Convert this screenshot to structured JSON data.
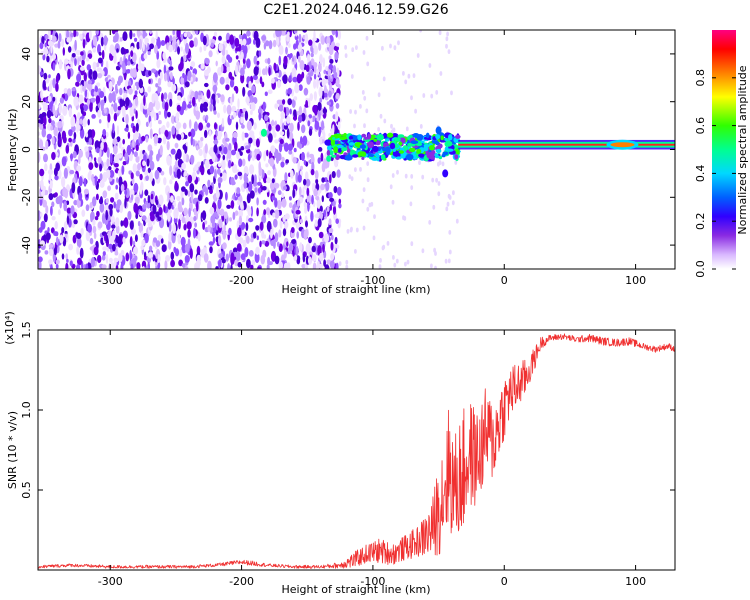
{
  "title": "C2E1.2024.046.12.59.G26",
  "colors": {
    "snr_line": "#f03030",
    "scatter_purple": "#6a00e0",
    "strong_band": "#ff2020",
    "axes": "#000000"
  },
  "chart_data": [
    {
      "type": "heatmap",
      "xlabel": "Height of straight line (km)",
      "ylabel": "Frequency (Hz)",
      "xlim": [
        -355,
        130
      ],
      "ylim": [
        -50,
        50
      ],
      "xticks": [
        -300,
        -200,
        -100,
        0,
        100
      ],
      "xtick_labels": [
        "-300",
        "-200",
        "-100",
        "0",
        "100"
      ],
      "yticks": [
        -40,
        -20,
        0,
        20,
        40
      ],
      "ytick_labels": [
        "-40",
        "-20",
        "0",
        "20",
        "40"
      ],
      "grid": false,
      "colorbar": {
        "label": "Normalized spectral amplitude",
        "range": [
          0,
          1
        ],
        "ticks": [
          0.0,
          0.2,
          0.4,
          0.6,
          0.8
        ],
        "tick_labels": [
          "0.0",
          "0.2",
          "0.4",
          "0.6",
          "0.8"
        ],
        "colormap": "rainbow (white-purple-blue-cyan-green-yellow-red-magenta)"
      },
      "regions": [
        {
          "desc": "diffuse purple noise",
          "x": [
            -355,
            -125
          ],
          "freq": [
            -50,
            50
          ],
          "amplitude": 0.25
        },
        {
          "desc": "sparse faint noise",
          "x": [
            -125,
            -40
          ],
          "freq": [
            -50,
            50
          ],
          "amplitude": 0.05
        },
        {
          "desc": "multi-color band near 0 Hz",
          "x": [
            -135,
            -35
          ],
          "freq": [
            -6,
            6
          ],
          "amplitude": 0.5
        },
        {
          "desc": "narrow red band at ~2 Hz",
          "x": [
            -35,
            130
          ],
          "freq": [
            0,
            4
          ],
          "amplitude": 0.9
        }
      ]
    },
    {
      "type": "line",
      "xlabel": "Height of straight line (km)",
      "ylabel": "SNR (10 * v/v)",
      "y_multiplier": "(x10⁴)",
      "xlim": [
        -355,
        130
      ],
      "ylim": [
        0,
        1.5
      ],
      "xticks": [
        -300,
        -200,
        -100,
        0,
        100
      ],
      "xtick_labels": [
        "-300",
        "-200",
        "-100",
        "0",
        "100"
      ],
      "yticks": [
        0.5,
        1.0,
        1.5
      ],
      "ytick_labels": [
        "0.5",
        "1.0",
        "1.5"
      ],
      "grid": false,
      "series": [
        {
          "x": [
            -355,
            -330,
            -300,
            -270,
            -240,
            -220,
            -200,
            -190,
            -180,
            -160,
            -140,
            -125,
            -115,
            -105,
            -95,
            -85,
            -75,
            -65,
            -55,
            -48,
            -42,
            -38,
            -32,
            -26,
            -20,
            -14,
            -8,
            -2,
            4,
            10,
            16,
            22,
            28,
            35,
            45,
            55,
            65,
            75,
            85,
            95,
            105,
            115,
            125,
            130
          ],
          "y": [
            0.02,
            0.03,
            0.02,
            0.02,
            0.02,
            0.03,
            0.05,
            0.04,
            0.03,
            0.02,
            0.02,
            0.03,
            0.06,
            0.1,
            0.12,
            0.1,
            0.14,
            0.18,
            0.25,
            0.45,
            0.65,
            0.5,
            0.6,
            0.72,
            0.7,
            0.85,
            0.8,
            0.98,
            1.1,
            1.15,
            1.2,
            1.3,
            1.42,
            1.45,
            1.46,
            1.44,
            1.45,
            1.43,
            1.42,
            1.43,
            1.4,
            1.38,
            1.4,
            1.38
          ],
          "amplitude": [
            0.01,
            0.01,
            0.01,
            0.01,
            0.01,
            0.01,
            0.015,
            0.015,
            0.01,
            0.01,
            0.01,
            0.02,
            0.05,
            0.06,
            0.08,
            0.07,
            0.08,
            0.1,
            0.18,
            0.35,
            0.4,
            0.35,
            0.4,
            0.35,
            0.3,
            0.3,
            0.25,
            0.22,
            0.18,
            0.15,
            0.12,
            0.08,
            0.04,
            0.02,
            0.02,
            0.02,
            0.025,
            0.025,
            0.025,
            0.025,
            0.02,
            0.02,
            0.02,
            0.02
          ]
        }
      ]
    }
  ]
}
